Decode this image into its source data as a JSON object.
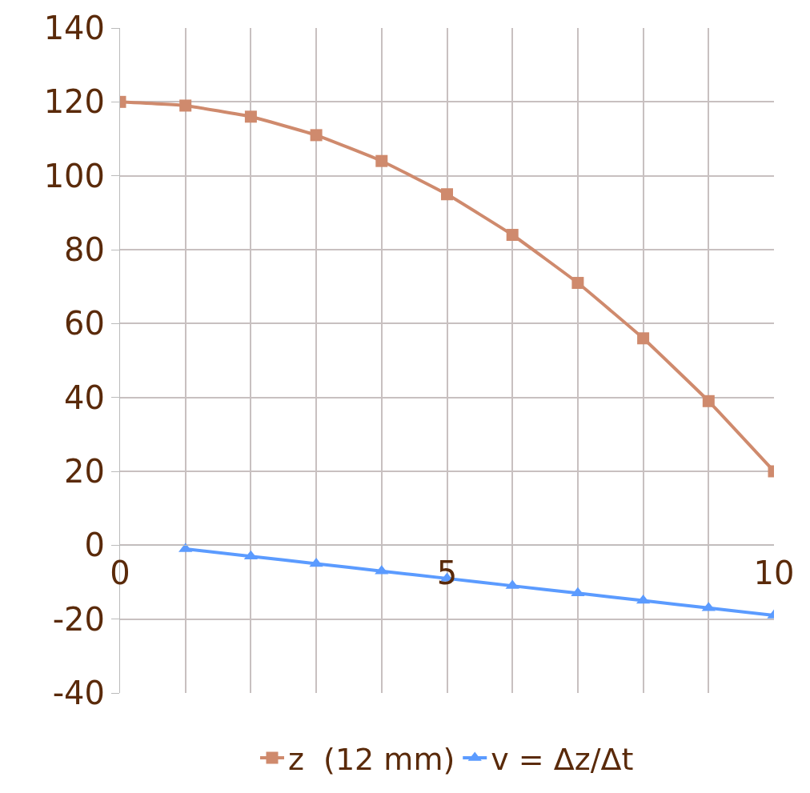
{
  "chart_data": {
    "type": "line",
    "xlim": [
      0,
      10
    ],
    "ylim": [
      -40,
      140
    ],
    "xticks": [
      0,
      {
        "value": 1,
        "label": null
      },
      {
        "value": 2,
        "label": null
      },
      {
        "value": 3,
        "label": null
      },
      {
        "value": 4,
        "label": null
      },
      5,
      {
        "value": 6,
        "label": null
      },
      {
        "value": 7,
        "label": null
      },
      {
        "value": 8,
        "label": null
      },
      {
        "value": 9,
        "label": null
      },
      10
    ],
    "yticks": [
      -40,
      -20,
      0,
      20,
      40,
      60,
      80,
      100,
      120,
      140
    ],
    "grid": true,
    "legend": "bottom",
    "line_style": "solid",
    "series": [
      {
        "name": "z  (12 mm)",
        "color": "#cf8a6d",
        "marker": "square",
        "x": [
          0,
          1,
          2,
          3,
          4,
          5,
          6,
          7,
          8,
          9,
          10
        ],
        "values": [
          120,
          119,
          116,
          111,
          104,
          95,
          84,
          71,
          56,
          39,
          20
        ]
      },
      {
        "name": "v = Δz/Δt",
        "color": "#5b9bff",
        "marker": "triangle",
        "x": [
          1,
          2,
          3,
          4,
          5,
          6,
          7,
          8,
          9,
          10
        ],
        "values": [
          -1,
          -3,
          -5,
          -7,
          -9,
          -11,
          -13,
          -15,
          -17,
          -19
        ]
      }
    ]
  }
}
